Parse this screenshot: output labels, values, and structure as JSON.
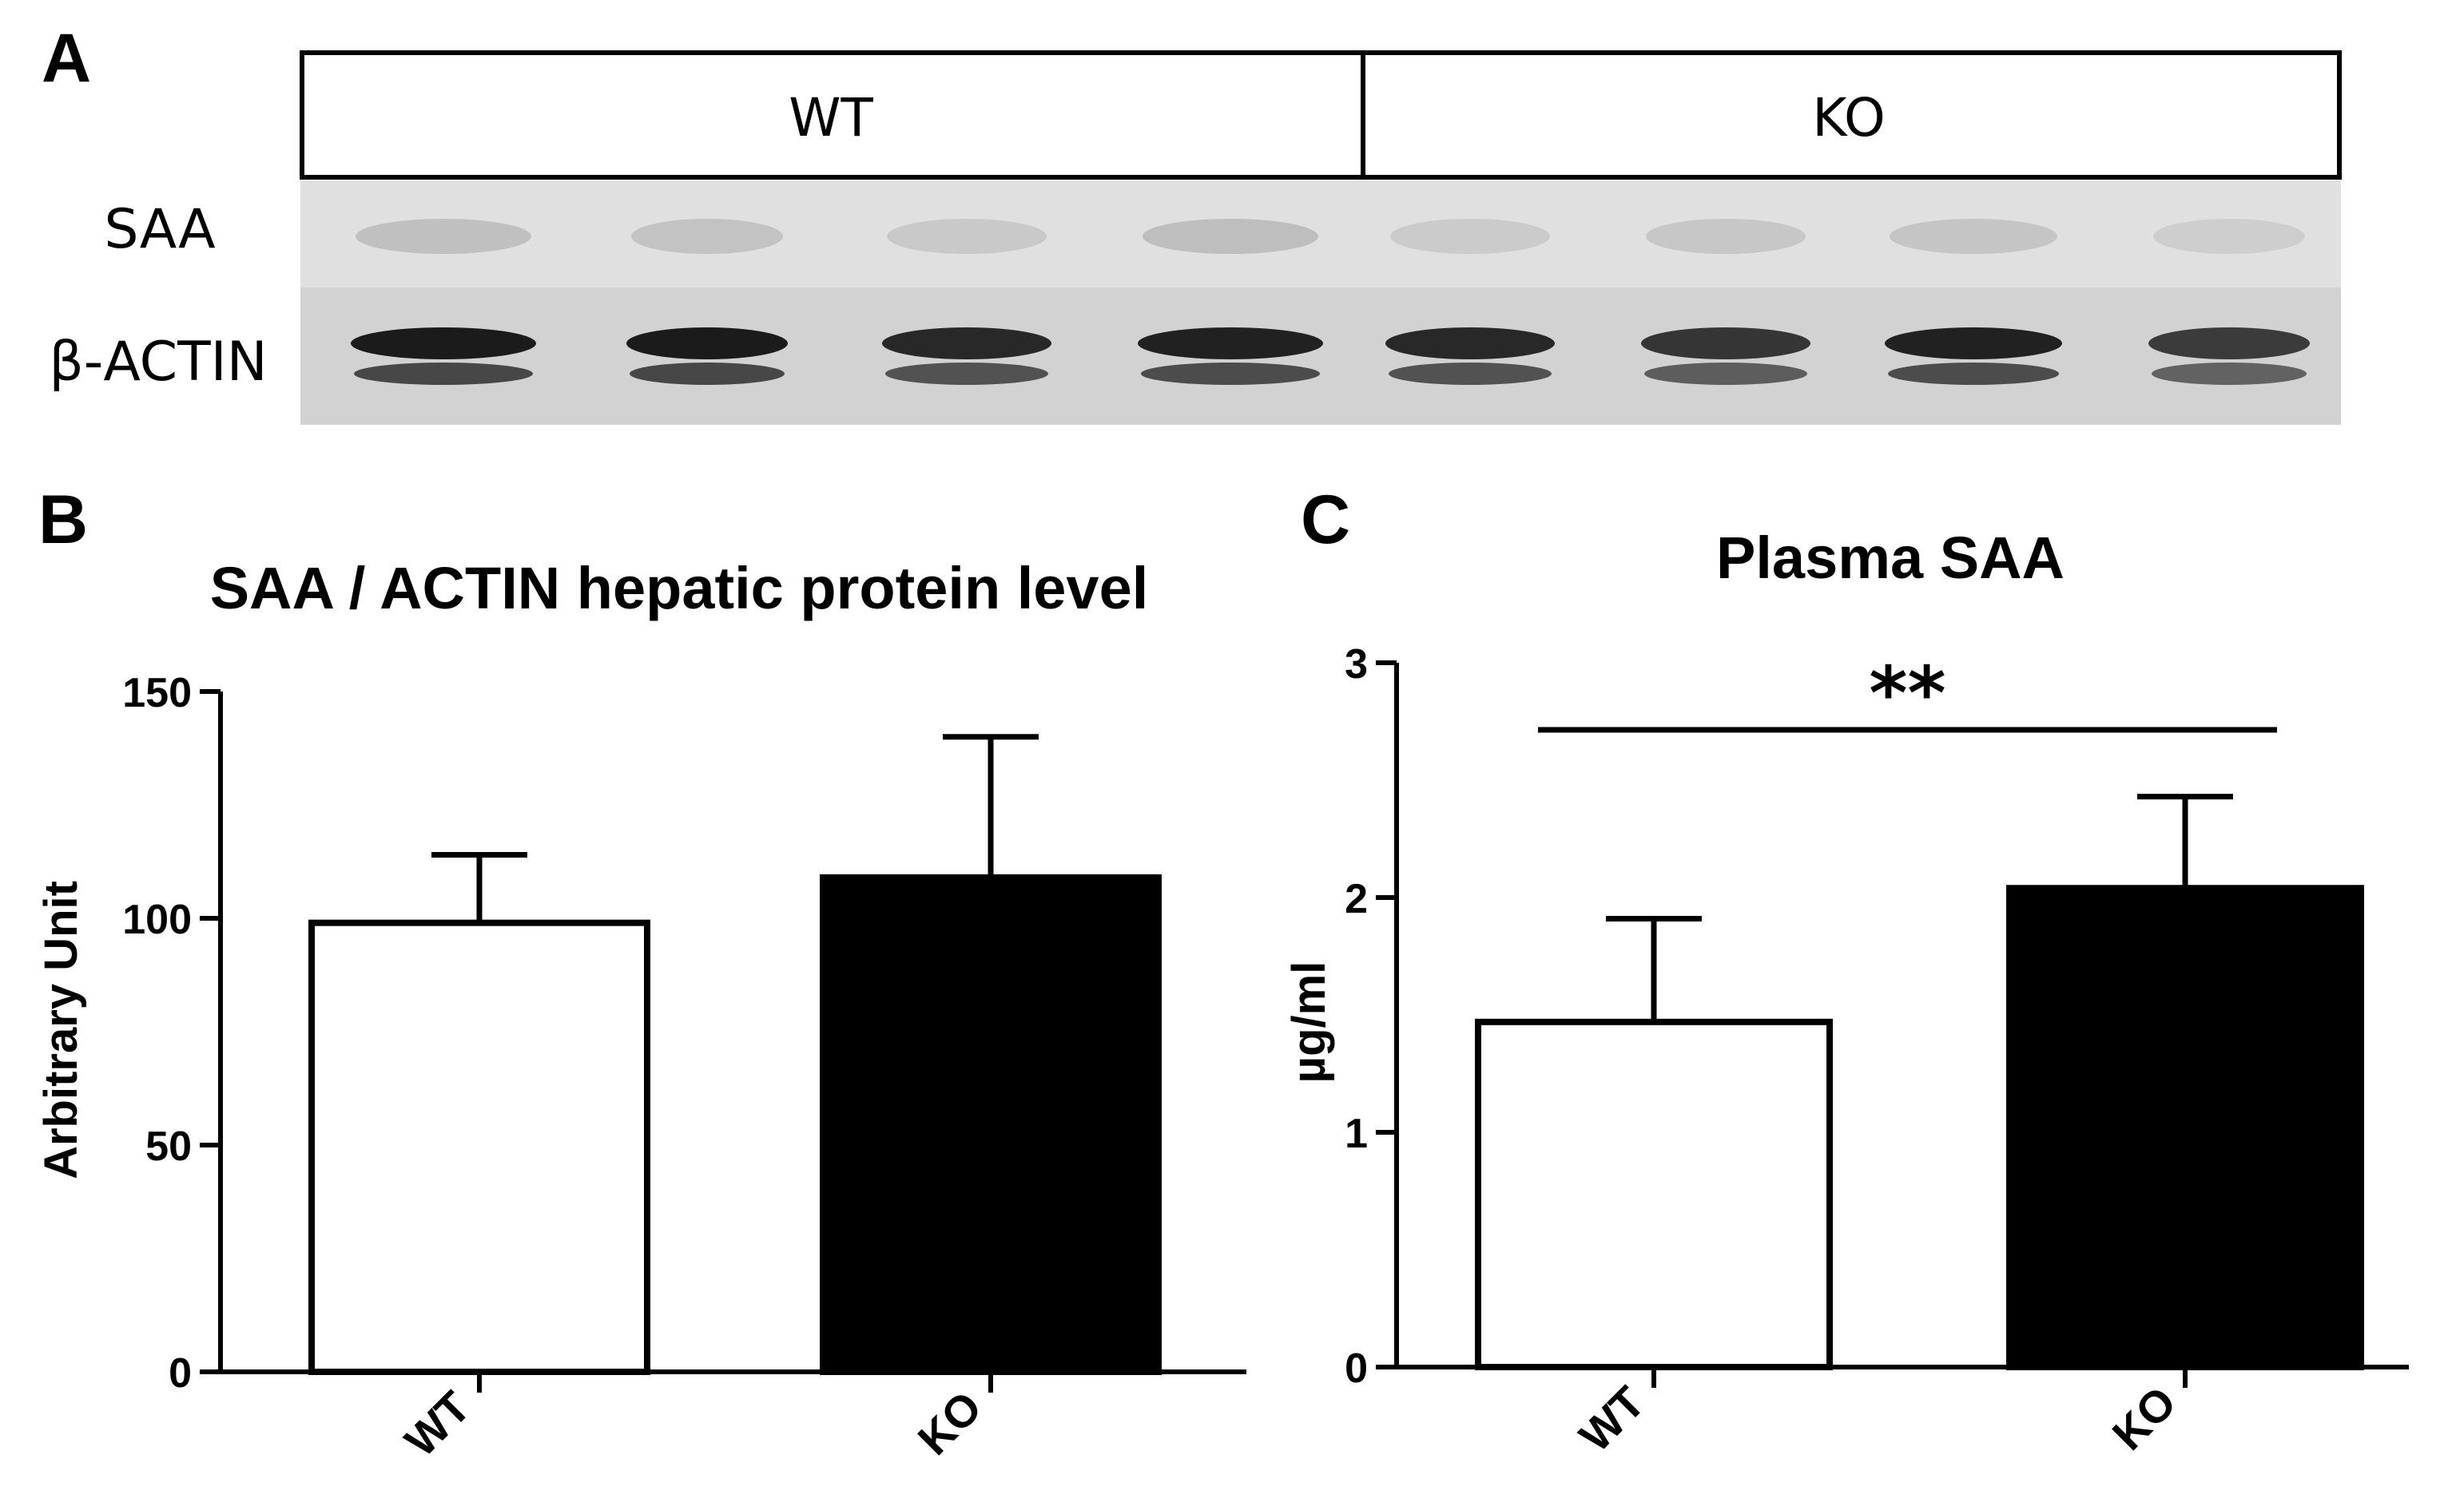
{
  "panel_a": {
    "letter": "A",
    "groups": [
      "WT",
      "KO"
    ],
    "rows": [
      "SAA",
      "β-ACTIN"
    ],
    "lanes_per_group": 4,
    "saa_band_intensity": [
      0.3,
      0.28,
      0.22,
      0.32,
      0.2,
      0.24,
      0.26,
      0.18
    ],
    "actin_band_intensity": [
      0.95,
      0.95,
      0.85,
      0.9,
      0.85,
      0.75,
      0.9,
      0.7
    ]
  },
  "chart_data": [
    {
      "panel": "B",
      "type": "bar",
      "title": "SAA / ACTIN hepatic protein level",
      "xlabel": "",
      "ylabel": "Arbitrary Unit",
      "categories": [
        "WT",
        "KO"
      ],
      "values": [
        99,
        109
      ],
      "error_upper": [
        15,
        31
      ],
      "bar_fill": [
        "#ffffff",
        "#000000"
      ],
      "ylim": [
        0,
        150
      ],
      "yticks": [
        0,
        50,
        100,
        150
      ],
      "grid": false,
      "significance": null
    },
    {
      "panel": "C",
      "type": "bar",
      "title": "Plasma SAA",
      "xlabel": "",
      "ylabel": "µg/ml",
      "categories": [
        "WT",
        "KO"
      ],
      "values": [
        1.47,
        2.04
      ],
      "error_upper": [
        0.44,
        0.39
      ],
      "bar_fill": [
        "#ffffff",
        "#000000"
      ],
      "ylim": [
        0,
        3
      ],
      "yticks": [
        0,
        1,
        2,
        3
      ],
      "grid": false,
      "significance": "**"
    }
  ]
}
